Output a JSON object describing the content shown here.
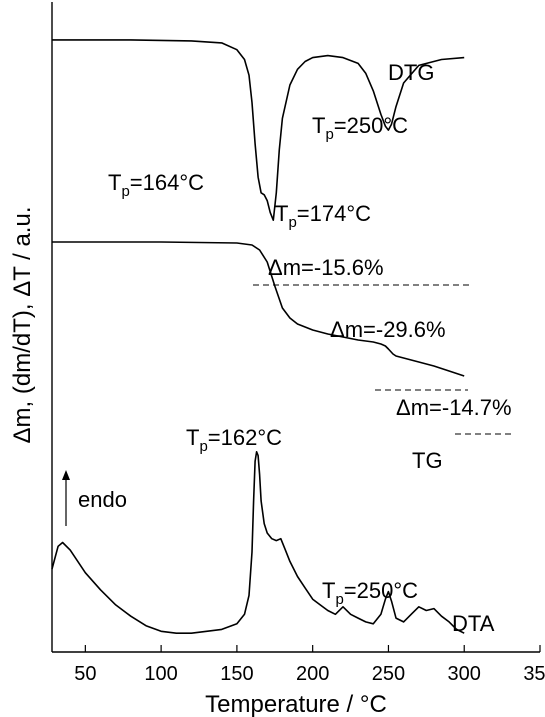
{
  "chart_data": {
    "type": "line",
    "xlabel": "Temperature / °C",
    "ylabel": "Δm, (dm/dT), ΔT / a.u.",
    "xlim": [
      28,
      350
    ],
    "xticks": [
      "50",
      "100",
      "150",
      "200",
      "250",
      "300",
      "350"
    ],
    "yticks": "none",
    "grid": false,
    "series": [
      {
        "name": "DTG",
        "x": [
          28,
          80,
          120,
          140,
          150,
          155,
          158,
          160,
          162,
          164,
          166,
          168,
          170,
          172,
          174,
          176,
          178,
          180,
          185,
          190,
          195,
          200,
          210,
          220,
          230,
          235,
          240,
          245,
          248,
          250,
          252,
          255,
          260,
          270,
          285,
          300
        ],
        "y": [
          0.98,
          0.98,
          0.975,
          0.965,
          0.93,
          0.88,
          0.8,
          0.66,
          0.45,
          0.28,
          0.2,
          0.19,
          0.16,
          0.1,
          0.06,
          0.2,
          0.42,
          0.58,
          0.75,
          0.83,
          0.87,
          0.89,
          0.9,
          0.89,
          0.86,
          0.81,
          0.72,
          0.6,
          0.54,
          0.52,
          0.55,
          0.64,
          0.76,
          0.85,
          0.88,
          0.89
        ]
      },
      {
        "name": "TG",
        "x": [
          28,
          100,
          150,
          160,
          165,
          170,
          175,
          180,
          185,
          190,
          200,
          210,
          220,
          230,
          240,
          245,
          248,
          250,
          253,
          255,
          260,
          270,
          280,
          290,
          300
        ],
        "y": [
          1.0,
          1.0,
          0.995,
          0.985,
          0.96,
          0.9,
          0.78,
          0.67,
          0.62,
          0.59,
          0.56,
          0.54,
          0.525,
          0.51,
          0.5,
          0.49,
          0.48,
          0.465,
          0.44,
          0.43,
          0.42,
          0.4,
          0.38,
          0.355,
          0.33
        ]
      },
      {
        "name": "DTA",
        "x": [
          28,
          32,
          35,
          40,
          50,
          60,
          70,
          80,
          90,
          100,
          110,
          120,
          130,
          140,
          150,
          155,
          158,
          160,
          161,
          162,
          163,
          164,
          165,
          166,
          168,
          170,
          173,
          176,
          179,
          182,
          185,
          190,
          195,
          200,
          205,
          210,
          215,
          220,
          225,
          230,
          235,
          240,
          245,
          248,
          250,
          252,
          255,
          260,
          265,
          270,
          275,
          280,
          285,
          290,
          295,
          300
        ],
        "y": [
          0.36,
          0.48,
          0.5,
          0.46,
          0.34,
          0.25,
          0.17,
          0.11,
          0.06,
          0.03,
          0.02,
          0.02,
          0.03,
          0.04,
          0.07,
          0.12,
          0.22,
          0.45,
          0.72,
          0.93,
          0.98,
          0.96,
          0.86,
          0.72,
          0.6,
          0.55,
          0.52,
          0.51,
          0.52,
          0.46,
          0.4,
          0.32,
          0.26,
          0.2,
          0.17,
          0.14,
          0.12,
          0.16,
          0.12,
          0.1,
          0.08,
          0.07,
          0.12,
          0.2,
          0.24,
          0.19,
          0.1,
          0.08,
          0.12,
          0.16,
          0.14,
          0.15,
          0.11,
          0.08,
          0.04,
          0.02
        ]
      }
    ],
    "annotations": {
      "dtg_label": "DTG",
      "tg_label": "TG",
      "dta_label": "DTA",
      "tp_dtg_164": "T",
      "tp_dtg_164_sub": "p",
      "tp_dtg_164_val": "=164°C",
      "tp_dtg_174": "T",
      "tp_dtg_174_sub": "p",
      "tp_dtg_174_val": "=174°C",
      "tp_dtg_250": "T",
      "tp_dtg_250_sub": "p",
      "tp_dtg_250_val": "=250°C",
      "tp_dta_162": "T",
      "tp_dta_162_sub": "p",
      "tp_dta_162_val": "=162°C",
      "tp_dta_250": "T",
      "tp_dta_250_sub": "p",
      "tp_dta_250_val": "=250°C",
      "dm_total": "Δm=-15.6%",
      "dm_step1": "Δm=-29.6%",
      "dm_step2": "Δm=-14.7%",
      "endo": "endo"
    }
  }
}
